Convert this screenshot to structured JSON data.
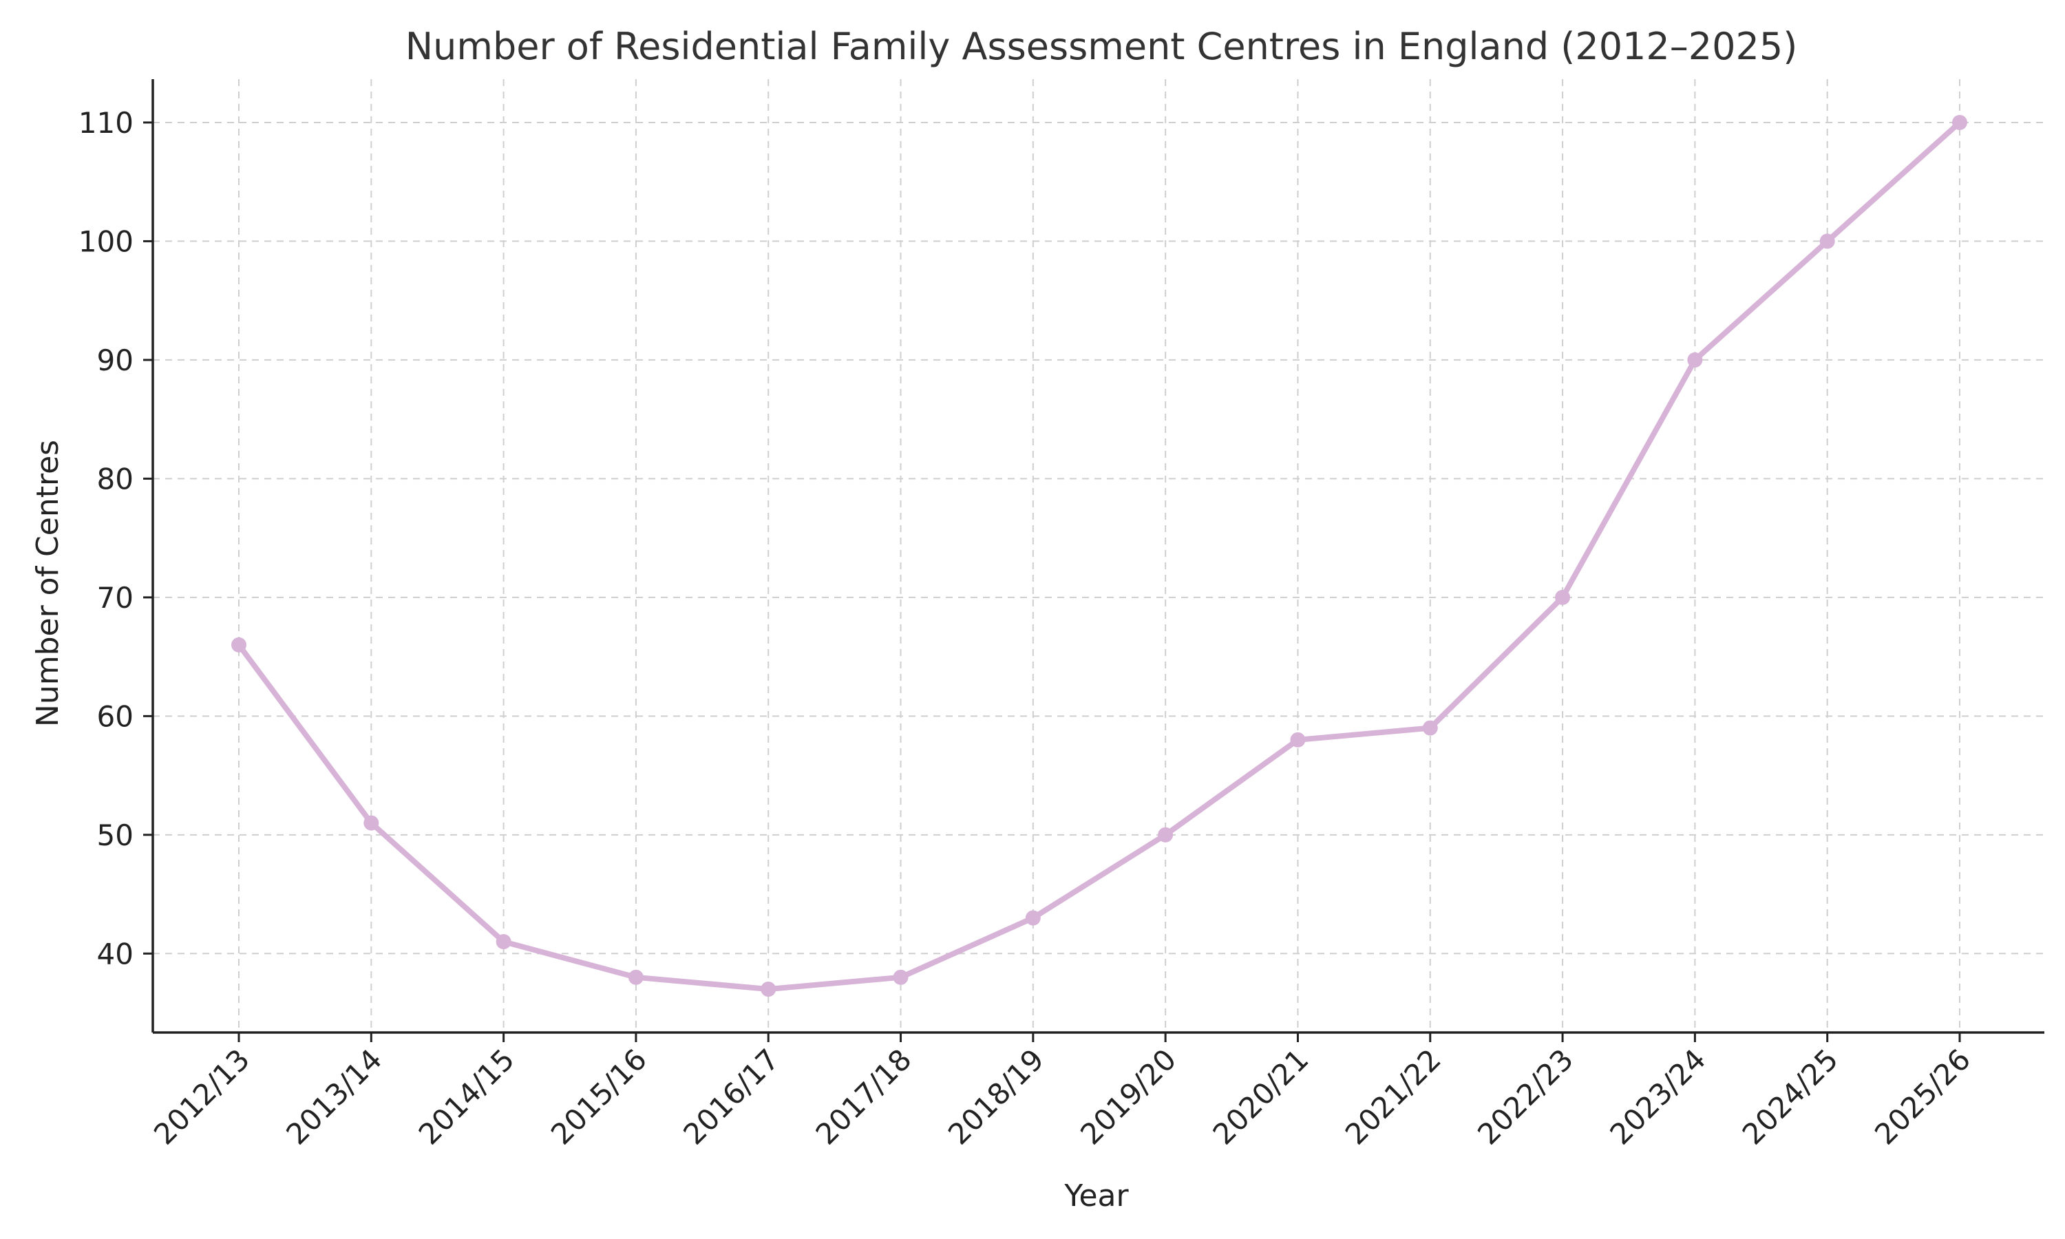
{
  "chart_data": {
    "type": "line",
    "title": "Number of Residential Family Assessment Centres in England (2012–2025)",
    "xlabel": "Year",
    "ylabel": "Number of Centres",
    "categories": [
      "2012/13",
      "2013/14",
      "2014/15",
      "2015/16",
      "2016/17",
      "2017/18",
      "2018/19",
      "2019/20",
      "2020/21",
      "2021/22",
      "2022/23",
      "2023/24",
      "2024/25",
      "2025/26"
    ],
    "series": [
      {
        "values": [
          66,
          51,
          41,
          38,
          37,
          38,
          43,
          50,
          58,
          59,
          70,
          90,
          100,
          110
        ],
        "color": "#d7b3d7"
      }
    ],
    "ylim": [
      33.35,
      113.65
    ],
    "yticks": [
      40,
      50,
      60,
      70,
      80,
      90,
      100,
      110
    ],
    "grid": true,
    "legend": "none"
  }
}
